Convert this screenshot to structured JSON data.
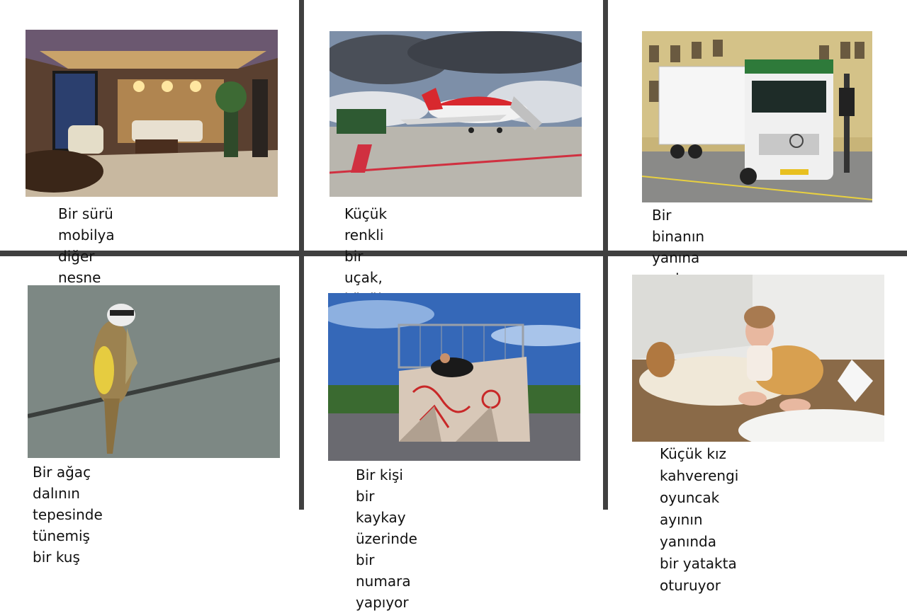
{
  "cells": [
    {
      "caption": "Bir sürü mobilya diğer nesne\niçeren bir oturma odası",
      "image": "living-room-photo"
    },
    {
      "caption": "Küçük renkli bir uçak, küçük bir\npistte",
      "image": "airplane-photo"
    },
    {
      "caption": "Bir binanın yanına park edilen bir\nkamyon görüntüsü",
      "image": "truck-photo"
    },
    {
      "caption": "Bir ağaç dalının tepesinde tünemiş\nbir kuş",
      "image": "bird-photo"
    },
    {
      "caption": "Bir kişi bir kaykay üzerinde bir\nnumara yapıyor",
      "image": "skateboard-photo"
    },
    {
      "caption": "Küçük kız kahverengi oyuncak\nayının yanında bir yatakta\noturuyor",
      "image": "baby-photo"
    }
  ],
  "colors": {
    "grid": "#404040",
    "text": "#111111",
    "background": "#ffffff"
  }
}
